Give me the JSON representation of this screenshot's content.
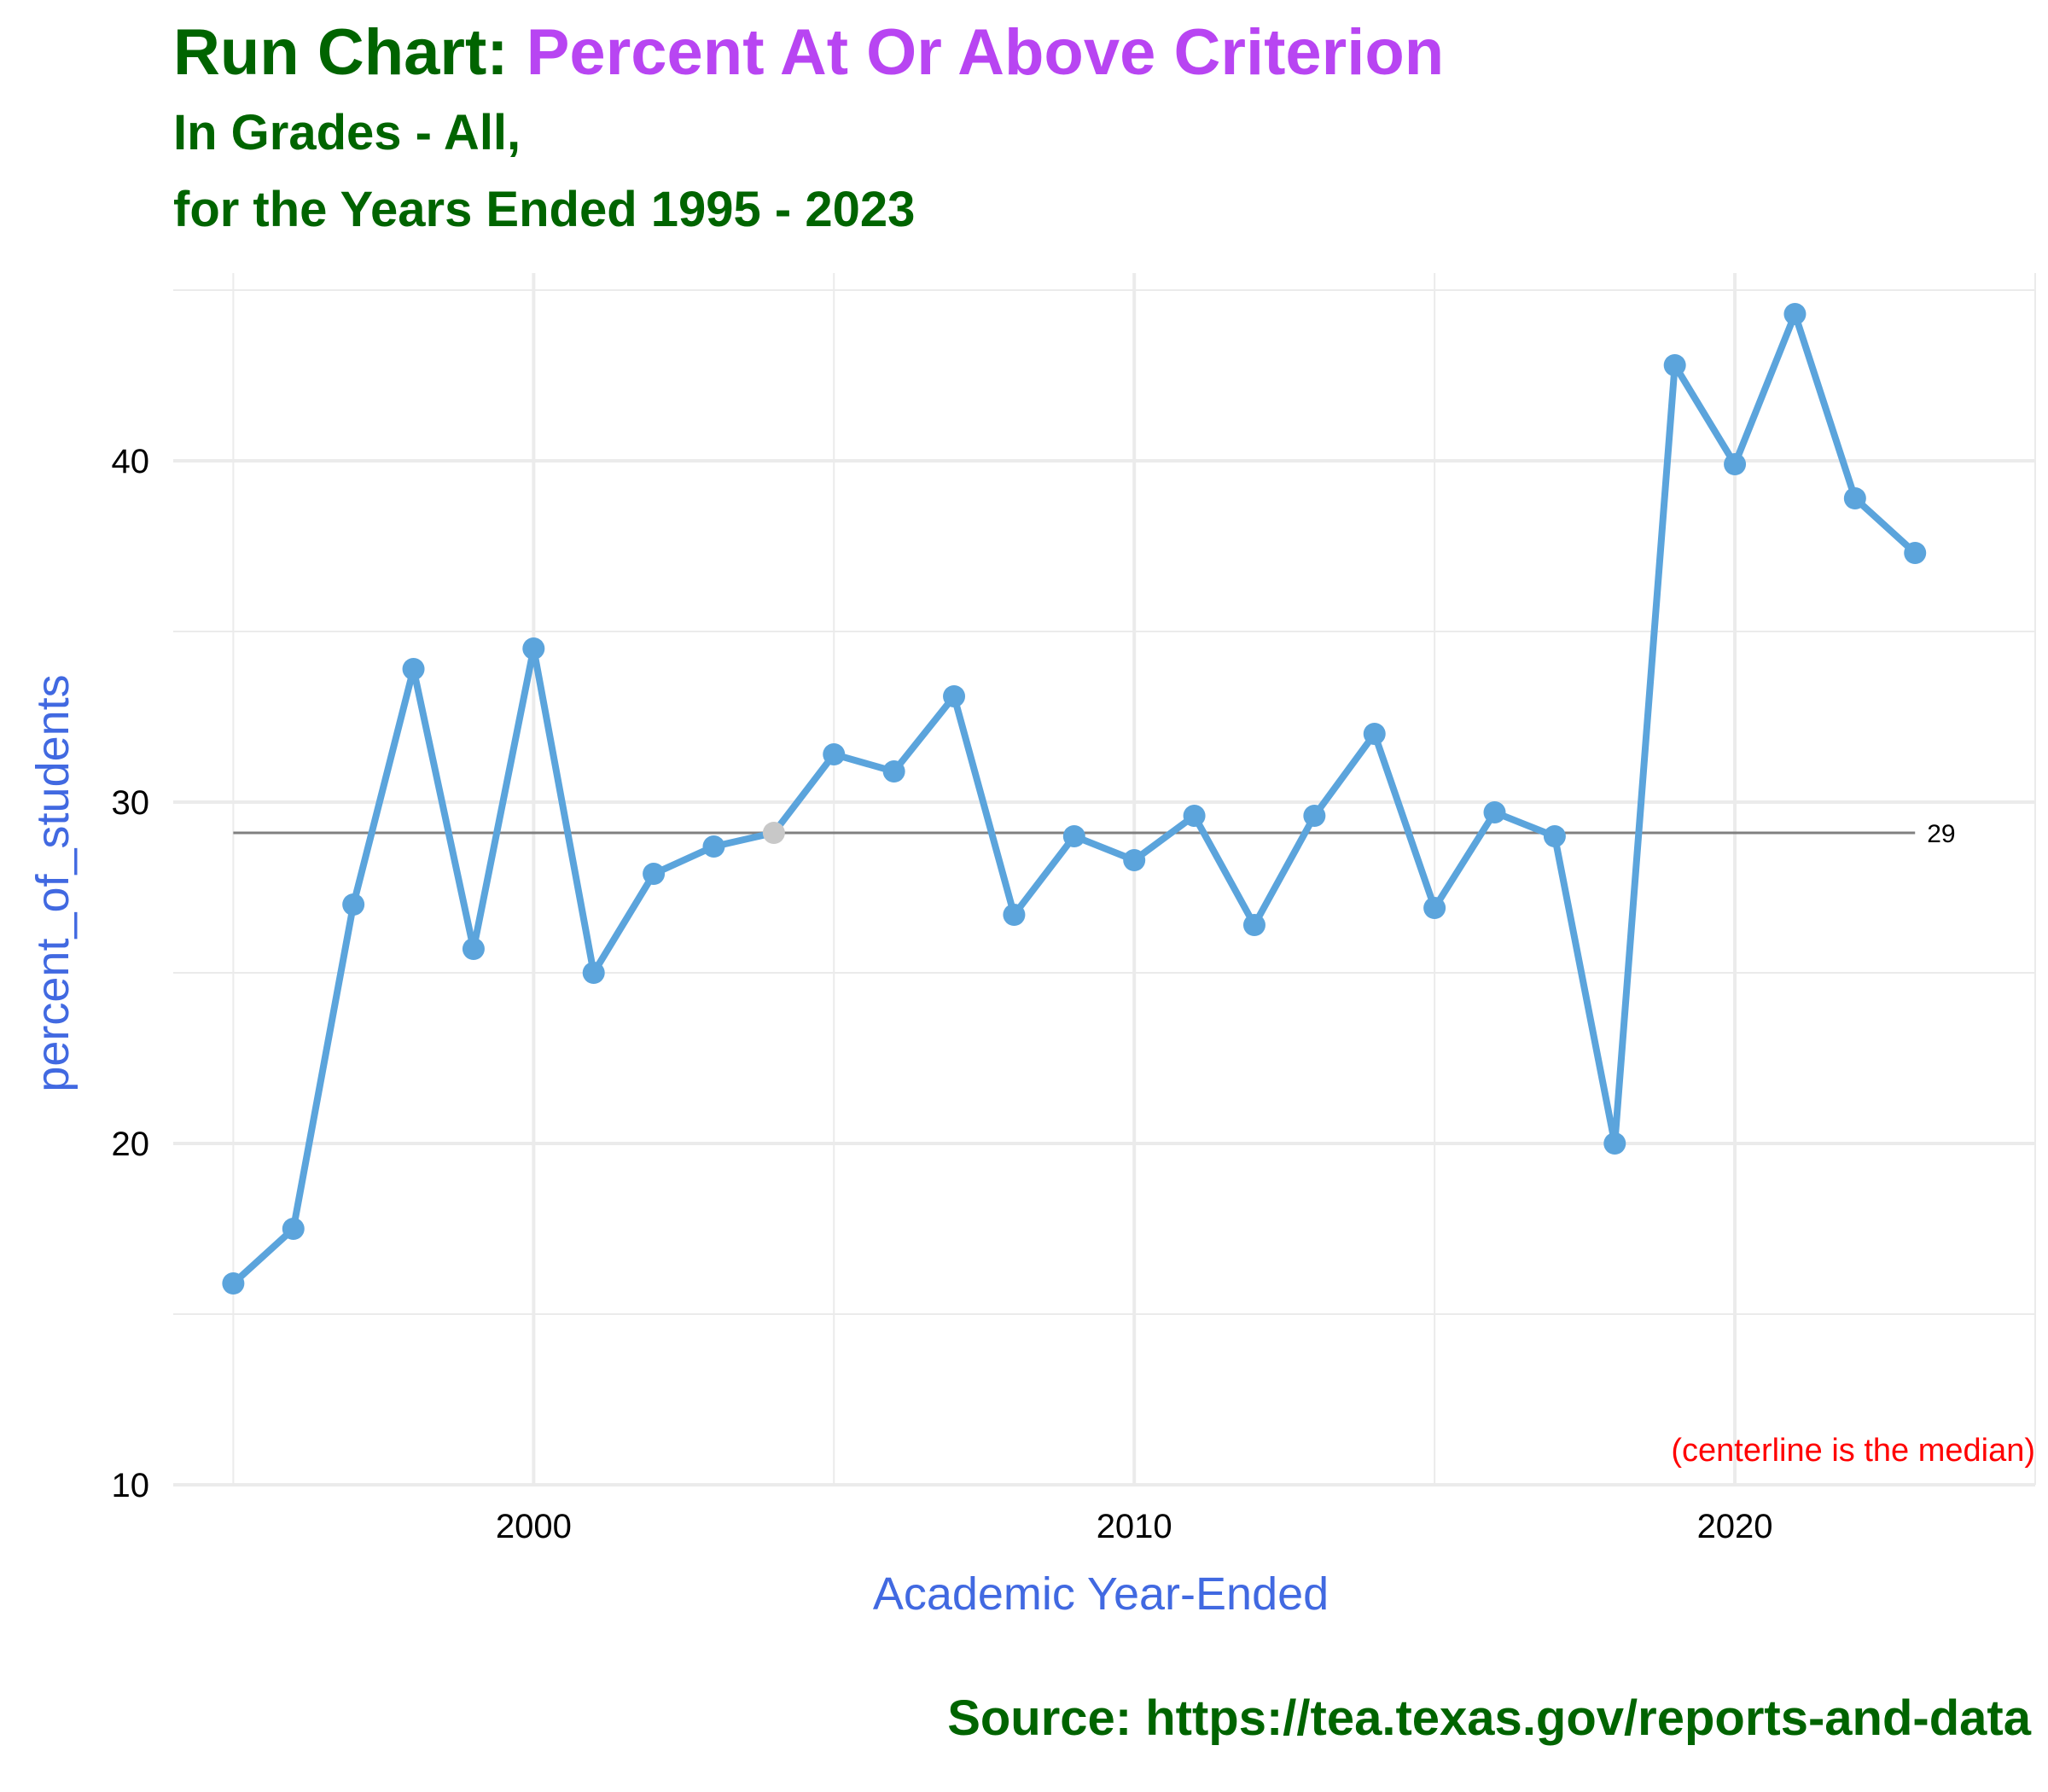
{
  "header": {
    "title_prefix": "Run Chart: ",
    "title_highlight": "Percent At Or Above Criterion",
    "subtitle_line1": "In Grades - All,",
    "subtitle_line2": "for the Years Ended 1995 - 2023",
    "caption": "Source:  https://tea.texas.gov/reports-and-data"
  },
  "colors": {
    "title": "#006400",
    "title_highlight": "#B845F2",
    "axis_title": "#4169E1",
    "series_line": "#5BA4DC",
    "highlight_point": "#C8C8C8",
    "centerline": "#808080",
    "note": "#FF0000",
    "grid": "#EBEBEB"
  },
  "chart_data": {
    "type": "line",
    "xlabel": "Academic Year-Ended",
    "ylabel": "percent_of_students",
    "xlim": [
      1994,
      2025
    ],
    "ylim": [
      10,
      45.5
    ],
    "x_ticks": [
      2000,
      2010,
      2020
    ],
    "y_ticks": [
      10,
      20,
      30,
      40
    ],
    "grid": true,
    "series": [
      {
        "x": [
          1995,
          1996,
          1997,
          1998,
          1999,
          2000,
          2001,
          2002,
          2003,
          2004,
          2005,
          2006,
          2007,
          2008,
          2009,
          2010,
          2011,
          2012,
          2013,
          2014,
          2015,
          2016,
          2017,
          2018,
          2019,
          2020,
          2021,
          2022,
          2023
        ],
        "values": [
          15.9,
          17.5,
          27.0,
          33.9,
          25.7,
          34.5,
          25.0,
          27.9,
          28.7,
          29.1,
          31.4,
          30.9,
          33.1,
          26.7,
          29.0,
          28.3,
          29.6,
          26.4,
          29.6,
          32.0,
          26.9,
          29.7,
          29.0,
          20.0,
          42.8,
          39.9,
          44.3,
          38.9,
          37.3
        ]
      }
    ],
    "highlighted_point_year": 2004,
    "centerline": {
      "value": 29.1,
      "label": "29",
      "x_start": 1995,
      "x_end": 2023
    },
    "annotation": "(centerline is the median)"
  }
}
